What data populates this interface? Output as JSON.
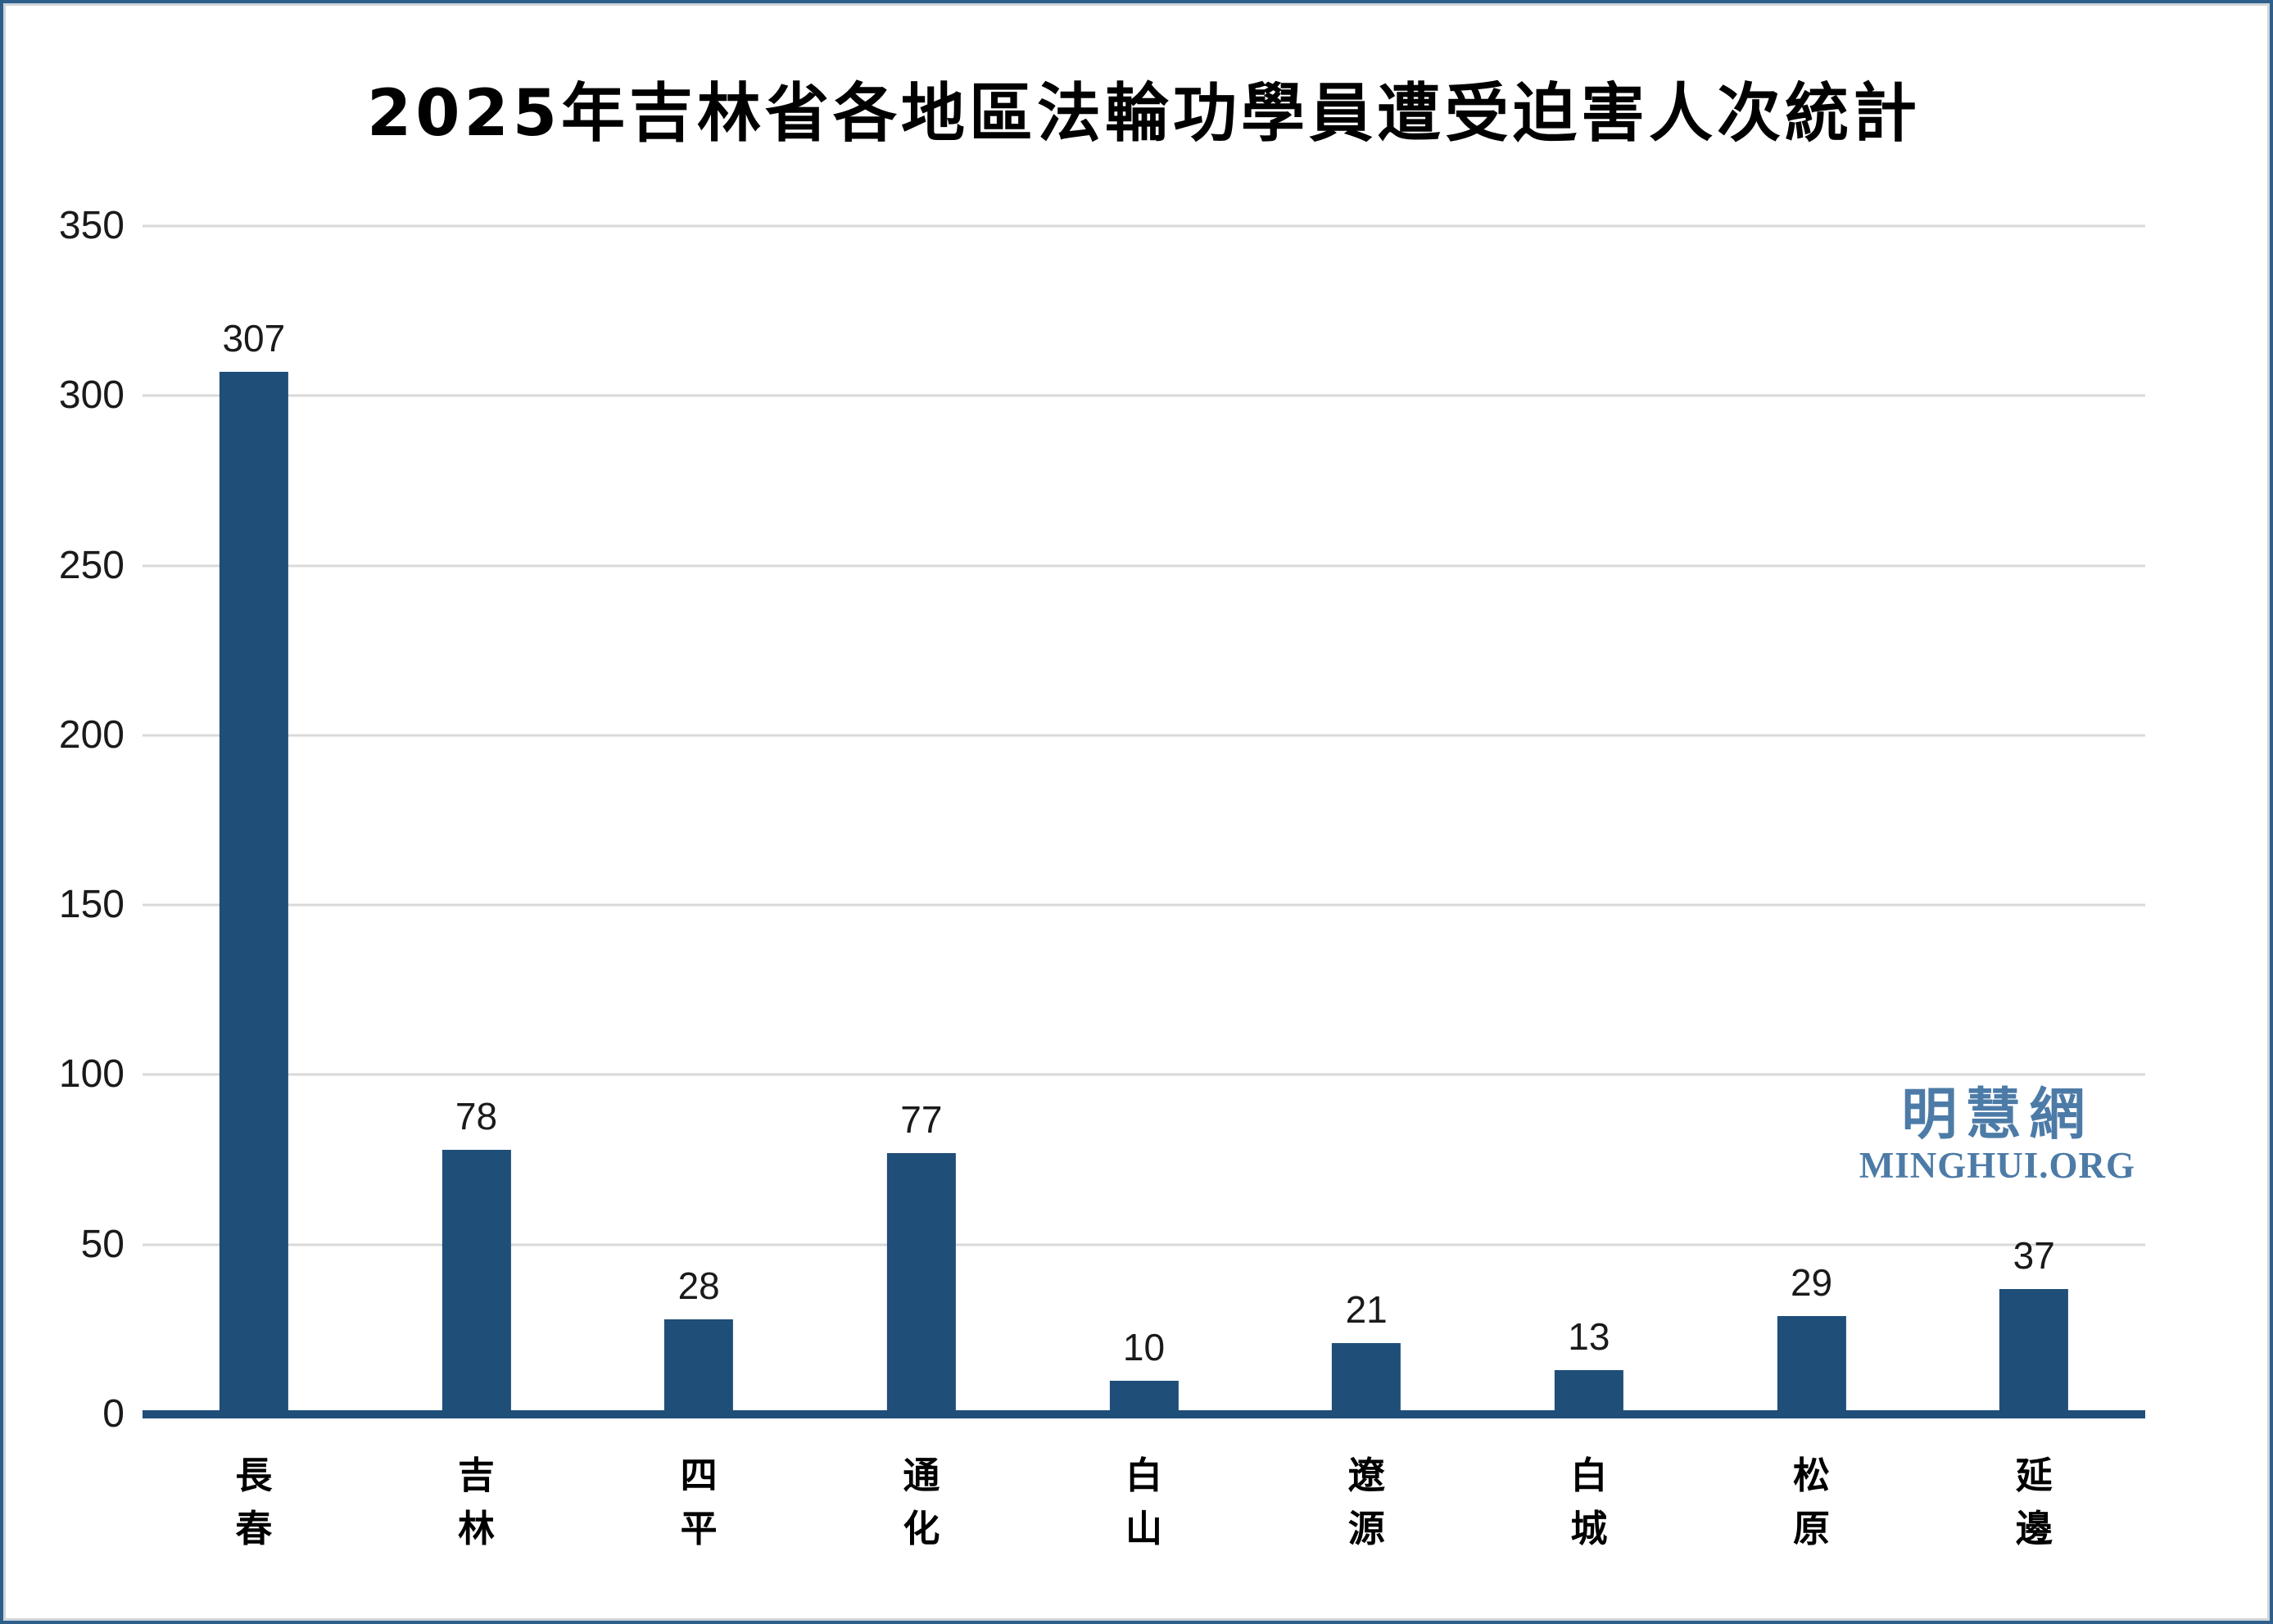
{
  "chart": {
    "title": "2025年吉林省各地區法輪功學員遭受迫害人次統計"
  },
  "watermark": {
    "chinese": "明慧網",
    "latin": "MINGHUI.ORG"
  },
  "colors": {
    "bar": "#1f4e79",
    "axis_line": "#1f4e79",
    "gridline": "#d9d9d9",
    "title_text": "#000000",
    "tick_text": "#1a1a1a",
    "watermark": "#4d7ba7",
    "frame_border": "#2e5f8b"
  },
  "chart_data": {
    "type": "bar",
    "title": "2025年吉林省各地區法輪功學員遭受迫害人次統計",
    "categories": [
      "長春",
      "吉林",
      "四平",
      "通化",
      "白山",
      "遼源",
      "白城",
      "松原",
      "延邊"
    ],
    "values": [
      307,
      78,
      28,
      77,
      10,
      21,
      13,
      29,
      37
    ],
    "xlabel": "",
    "ylabel": "",
    "ylim": [
      0,
      350
    ],
    "ytick_interval": 50,
    "yticks": [
      0,
      50,
      100,
      150,
      200,
      250,
      300,
      350
    ],
    "grid": "horizontal",
    "legend_position": "none",
    "data_labels": true,
    "category_label_orientation": "vertical-stacked"
  }
}
